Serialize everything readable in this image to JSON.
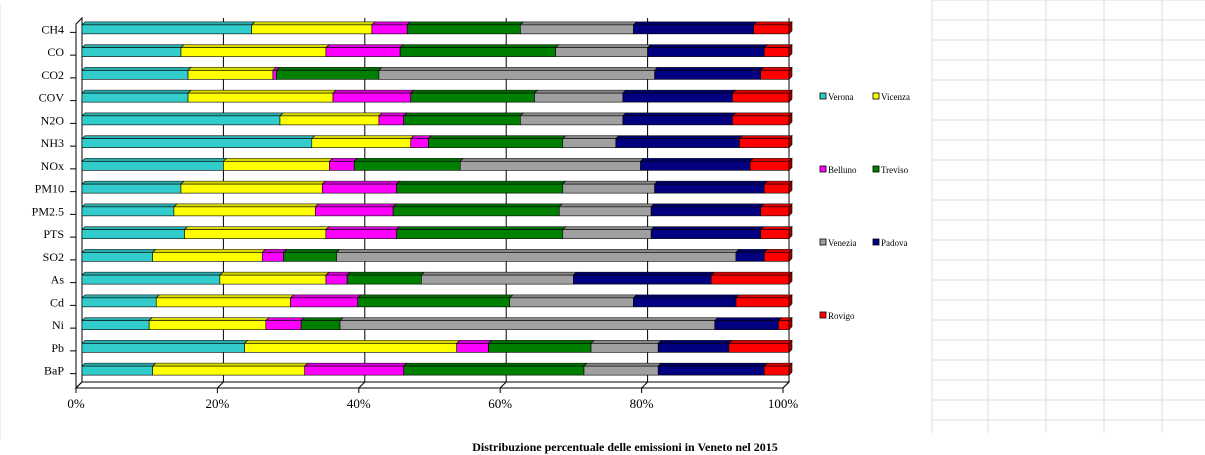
{
  "caption": "Distribuzione percentuale delle emissioni in Veneto nel 2015",
  "colors": {
    "Verona": "#33cccc",
    "Vicenza": "#ffff00",
    "Belluno": "#ff00ff",
    "Treviso": "#008000",
    "Venezia": "#a0a0a0",
    "Padova": "#000080",
    "Rovigo": "#ff0000"
  },
  "chart_data": {
    "type": "bar",
    "orientation": "horizontal",
    "stacked": "percent",
    "title": "",
    "xlabel": "",
    "ylabel": "",
    "xlim": [
      0,
      100
    ],
    "x_ticks": [
      "0%",
      "20%",
      "40%",
      "60%",
      "80%",
      "100%"
    ],
    "grid": true,
    "legend_position": "right",
    "categories": [
      "CH4",
      "CO",
      "CO2",
      "COV",
      "N2O",
      "NH3",
      "NOx",
      "PM10",
      "PM2.5",
      "PTS",
      "SO2",
      "As",
      "Cd",
      "Ni",
      "Pb",
      "BaP"
    ],
    "series": [
      {
        "name": "Verona",
        "values": [
          24,
          14,
          15,
          15,
          28,
          32.5,
          20,
          14,
          13,
          14.5,
          10,
          19.5,
          10.5,
          9.5,
          23,
          10
        ]
      },
      {
        "name": "Vicenza",
        "values": [
          17,
          20.5,
          12,
          20.5,
          14,
          14,
          15,
          20,
          20,
          20,
          15.5,
          15,
          19,
          16.5,
          30,
          21.5
        ]
      },
      {
        "name": "Belluno",
        "values": [
          5,
          10.5,
          0.5,
          11,
          3.5,
          2.5,
          3.5,
          10.5,
          11,
          10,
          3,
          3,
          9.5,
          5,
          4.5,
          14
        ]
      },
      {
        "name": "Treviso",
        "values": [
          16,
          22,
          14.5,
          17.5,
          16.5,
          19,
          15,
          23.5,
          23.5,
          23.5,
          7.5,
          10.5,
          21.5,
          5.5,
          14.5,
          25.5
        ]
      },
      {
        "name": "Venezia",
        "values": [
          16,
          13,
          39,
          12.5,
          14.5,
          7.5,
          25.5,
          13,
          13,
          12.5,
          56.5,
          21.5,
          17.5,
          53,
          9.5,
          10.5
        ]
      },
      {
        "name": "Padova",
        "values": [
          17,
          16.5,
          15,
          15.5,
          15.5,
          17.5,
          15.5,
          15.5,
          15.5,
          15.5,
          4,
          19.5,
          14.5,
          9,
          10,
          15
        ]
      },
      {
        "name": "Rovigo",
        "values": [
          5,
          3.5,
          4,
          8,
          8,
          7,
          5.5,
          3.5,
          4,
          4,
          3.5,
          11,
          7.5,
          1.5,
          8.5,
          3.5
        ]
      }
    ]
  }
}
